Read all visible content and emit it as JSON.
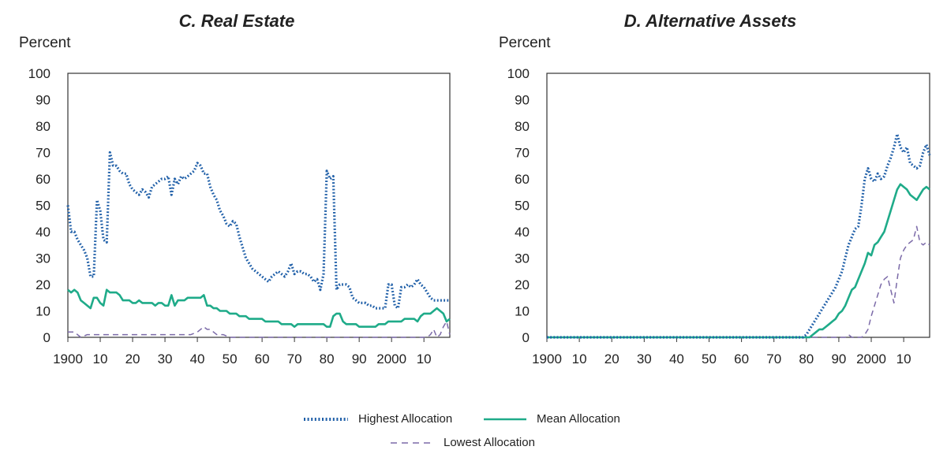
{
  "chart_data": [
    {
      "type": "line",
      "title": "C. Real Estate",
      "ylabel": "Percent",
      "xlabel": "",
      "ylim": [
        0,
        100
      ],
      "yticks": [
        0,
        10,
        20,
        30,
        40,
        50,
        60,
        70,
        80,
        90,
        100
      ],
      "xlim": [
        1900,
        2018
      ],
      "xticks": [
        1900,
        1910,
        1920,
        1930,
        1940,
        1950,
        1960,
        1970,
        1980,
        1990,
        2000,
        2010
      ],
      "xtick_labels": [
        "1900",
        "10",
        "20",
        "30",
        "40",
        "50",
        "60",
        "70",
        "80",
        "90",
        "2000",
        "10"
      ],
      "series": [
        {
          "name": "Highest Allocation",
          "key": "highest",
          "color": "#1f5fa8",
          "x": [
            1900,
            1901,
            1902,
            1903,
            1904,
            1905,
            1906,
            1907,
            1908,
            1909,
            1910,
            1911,
            1912,
            1913,
            1914,
            1915,
            1916,
            1917,
            1918,
            1919,
            1920,
            1921,
            1922,
            1923,
            1924,
            1925,
            1926,
            1927,
            1928,
            1929,
            1930,
            1931,
            1932,
            1933,
            1934,
            1935,
            1936,
            1937,
            1938,
            1939,
            1940,
            1941,
            1942,
            1943,
            1944,
            1945,
            1946,
            1947,
            1948,
            1949,
            1950,
            1951,
            1952,
            1953,
            1954,
            1955,
            1956,
            1957,
            1958,
            1959,
            1960,
            1961,
            1962,
            1963,
            1964,
            1965,
            1966,
            1967,
            1968,
            1969,
            1970,
            1971,
            1972,
            1973,
            1974,
            1975,
            1976,
            1977,
            1978,
            1979,
            1980,
            1981,
            1982,
            1983,
            1984,
            1985,
            1986,
            1987,
            1988,
            1989,
            1990,
            1991,
            1992,
            1993,
            1994,
            1995,
            1996,
            1997,
            1998,
            1999,
            2000,
            2001,
            2002,
            2003,
            2004,
            2005,
            2006,
            2007,
            2008,
            2009,
            2010,
            2011,
            2012,
            2013,
            2014,
            2015,
            2016,
            2017,
            2018
          ],
          "y": [
            50,
            40,
            40,
            37,
            35,
            33,
            30,
            23,
            23,
            52,
            48,
            37,
            36,
            70,
            65,
            65,
            63,
            62,
            62,
            58,
            56,
            55,
            54,
            56,
            55,
            53,
            57,
            58,
            59,
            60,
            60,
            61,
            54,
            60,
            58,
            61,
            60,
            61,
            62,
            63,
            66,
            65,
            62,
            62,
            57,
            54,
            52,
            48,
            46,
            43,
            42,
            44,
            43,
            38,
            34,
            30,
            28,
            26,
            25,
            24,
            23,
            22,
            21,
            23,
            24,
            25,
            24,
            23,
            25,
            28,
            24,
            25,
            25,
            24,
            24,
            23,
            21,
            22,
            18,
            24,
            63,
            60,
            61,
            18,
            20,
            20,
            20,
            19,
            15,
            14,
            13,
            13,
            13,
            12,
            12,
            11,
            11,
            11,
            11,
            20,
            20,
            12,
            11,
            19,
            19,
            20,
            19,
            20,
            22,
            20,
            19,
            17,
            15,
            14,
            14,
            14,
            14,
            14,
            14
          ]
        },
        {
          "name": "Mean Allocation",
          "key": "mean",
          "color": "#1fab89",
          "x": [
            1900,
            1901,
            1902,
            1903,
            1904,
            1905,
            1906,
            1907,
            1908,
            1909,
            1910,
            1911,
            1912,
            1913,
            1914,
            1915,
            1916,
            1917,
            1918,
            1919,
            1920,
            1921,
            1922,
            1923,
            1924,
            1925,
            1926,
            1927,
            1928,
            1929,
            1930,
            1931,
            1932,
            1933,
            1934,
            1935,
            1936,
            1937,
            1938,
            1939,
            1940,
            1941,
            1942,
            1943,
            1944,
            1945,
            1946,
            1947,
            1948,
            1949,
            1950,
            1951,
            1952,
            1953,
            1954,
            1955,
            1956,
            1957,
            1958,
            1959,
            1960,
            1961,
            1962,
            1963,
            1964,
            1965,
            1966,
            1967,
            1968,
            1969,
            1970,
            1971,
            1972,
            1973,
            1974,
            1975,
            1976,
            1977,
            1978,
            1979,
            1980,
            1981,
            1982,
            1983,
            1984,
            1985,
            1986,
            1987,
            1988,
            1989,
            1990,
            1991,
            1992,
            1993,
            1994,
            1995,
            1996,
            1997,
            1998,
            1999,
            2000,
            2001,
            2002,
            2003,
            2004,
            2005,
            2006,
            2007,
            2008,
            2009,
            2010,
            2011,
            2012,
            2013,
            2014,
            2015,
            2016,
            2017,
            2018
          ],
          "y": [
            18,
            17,
            18,
            17,
            14,
            13,
            12,
            11,
            15,
            15,
            13,
            12,
            18,
            17,
            17,
            17,
            16,
            14,
            14,
            14,
            13,
            13,
            14,
            13,
            13,
            13,
            13,
            12,
            13,
            13,
            12,
            12,
            16,
            12,
            14,
            14,
            14,
            15,
            15,
            15,
            15,
            15,
            16,
            12,
            12,
            11,
            11,
            10,
            10,
            10,
            9,
            9,
            9,
            8,
            8,
            8,
            7,
            7,
            7,
            7,
            7,
            6,
            6,
            6,
            6,
            6,
            5,
            5,
            5,
            5,
            4,
            5,
            5,
            5,
            5,
            5,
            5,
            5,
            5,
            5,
            4,
            4,
            8,
            9,
            9,
            6,
            5,
            5,
            5,
            5,
            4,
            4,
            4,
            4,
            4,
            4,
            5,
            5,
            5,
            6,
            6,
            6,
            6,
            6,
            7,
            7,
            7,
            7,
            6,
            8,
            9,
            9,
            9,
            10,
            11,
            10,
            9,
            6,
            7
          ]
        },
        {
          "name": "Lowest Allocation",
          "key": "lowest",
          "color": "#7b6aa8",
          "x": [
            1900,
            1902,
            1904,
            1906,
            1908,
            1910,
            1912,
            1914,
            1916,
            1918,
            1920,
            1922,
            1924,
            1926,
            1928,
            1930,
            1932,
            1934,
            1936,
            1938,
            1940,
            1941,
            1942,
            1943,
            1944,
            1945,
            1946,
            1948,
            1950,
            1955,
            1960,
            1965,
            1970,
            1975,
            1980,
            1985,
            1990,
            1995,
            2000,
            2005,
            2007,
            2008,
            2009,
            2010,
            2011,
            2012,
            2013,
            2014,
            2015,
            2016,
            2017,
            2018
          ],
          "y": [
            2,
            2,
            0,
            1,
            1,
            1,
            1,
            1,
            1,
            1,
            1,
            1,
            1,
            1,
            1,
            1,
            1,
            1,
            1,
            1,
            2,
            3,
            4,
            3,
            3,
            2,
            1,
            1,
            0,
            0,
            0,
            0,
            0,
            0,
            0,
            0,
            0,
            0,
            0,
            0,
            0,
            0,
            0,
            0,
            0,
            1,
            3,
            0,
            1,
            4,
            6,
            1
          ]
        }
      ]
    },
    {
      "type": "line",
      "title": "D. Alternative Assets",
      "ylabel": "Percent",
      "xlabel": "",
      "ylim": [
        0,
        100
      ],
      "yticks": [
        0,
        10,
        20,
        30,
        40,
        50,
        60,
        70,
        80,
        90,
        100
      ],
      "xlim": [
        1900,
        2018
      ],
      "xticks": [
        1900,
        1910,
        1920,
        1930,
        1940,
        1950,
        1960,
        1970,
        1980,
        1990,
        2000,
        2010
      ],
      "xtick_labels": [
        "1900",
        "10",
        "20",
        "30",
        "40",
        "50",
        "60",
        "70",
        "80",
        "90",
        "2000",
        "10"
      ],
      "series": [
        {
          "name": "Highest Allocation",
          "key": "highest",
          "color": "#1f5fa8",
          "x": [
            1900,
            1979,
            1980,
            1981,
            1982,
            1983,
            1984,
            1985,
            1986,
            1987,
            1988,
            1989,
            1990,
            1991,
            1992,
            1993,
            1994,
            1995,
            1996,
            1997,
            1998,
            1999,
            2000,
            2001,
            2002,
            2003,
            2004,
            2005,
            2006,
            2007,
            2008,
            2009,
            2010,
            2011,
            2012,
            2013,
            2014,
            2015,
            2016,
            2017,
            2018
          ],
          "y": [
            0,
            0,
            1,
            3,
            5,
            7,
            9,
            11,
            13,
            15,
            17,
            19,
            22,
            25,
            30,
            35,
            38,
            41,
            42,
            50,
            60,
            64,
            60,
            59,
            62,
            60,
            61,
            65,
            68,
            72,
            77,
            72,
            70,
            72,
            66,
            65,
            64,
            65,
            70,
            73,
            69
          ]
        },
        {
          "name": "Mean Allocation",
          "key": "mean",
          "color": "#1fab89",
          "x": [
            1900,
            1980,
            1981,
            1982,
            1983,
            1984,
            1985,
            1986,
            1987,
            1988,
            1989,
            1990,
            1991,
            1992,
            1993,
            1994,
            1995,
            1996,
            1997,
            1998,
            1999,
            2000,
            2001,
            2002,
            2003,
            2004,
            2005,
            2006,
            2007,
            2008,
            2009,
            2010,
            2011,
            2012,
            2013,
            2014,
            2015,
            2016,
            2017,
            2018
          ],
          "y": [
            0,
            0,
            0,
            1,
            2,
            3,
            3,
            4,
            5,
            6,
            7,
            9,
            10,
            12,
            15,
            18,
            19,
            22,
            25,
            28,
            32,
            31,
            35,
            36,
            38,
            40,
            44,
            48,
            52,
            56,
            58,
            57,
            56,
            54,
            53,
            52,
            54,
            56,
            57,
            56
          ]
        },
        {
          "name": "Lowest Allocation",
          "key": "lowest",
          "color": "#7b6aa8",
          "x": [
            1900,
            1988,
            1990,
            1992,
            1993,
            1994,
            1995,
            1996,
            1997,
            1998,
            1999,
            2000,
            2001,
            2002,
            2003,
            2004,
            2005,
            2006,
            2007,
            2008,
            2009,
            2010,
            2011,
            2012,
            2013,
            2014,
            2015,
            2016,
            2017,
            2018
          ],
          "y": [
            0,
            0,
            0,
            0,
            1,
            0,
            0,
            0,
            0,
            1,
            3,
            8,
            12,
            16,
            20,
            22,
            23,
            18,
            13,
            22,
            30,
            33,
            35,
            36,
            37,
            42,
            36,
            35,
            36,
            35
          ]
        }
      ]
    }
  ],
  "legend": {
    "highest": "Highest Allocation",
    "mean": "Mean Allocation",
    "lowest": "Lowest Allocation"
  }
}
